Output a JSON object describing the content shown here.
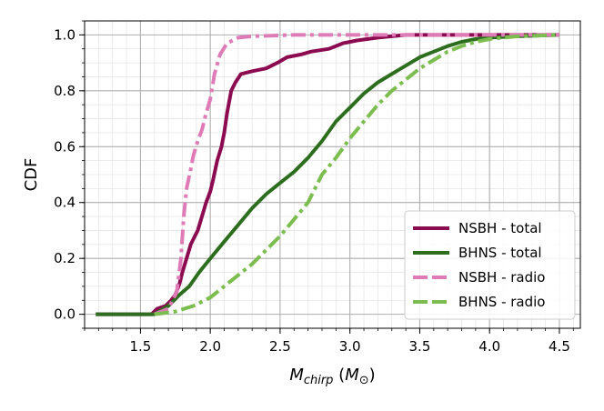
{
  "chart_data": {
    "type": "line",
    "title": "",
    "xlabel": "M_chirp (M_⊙)",
    "ylabel": "CDF",
    "xlim": [
      1.1,
      4.65
    ],
    "ylim": [
      -0.05,
      1.05
    ],
    "xticks": [
      "1.5",
      "2.0",
      "2.5",
      "3.0",
      "3.5",
      "4.0",
      "4.5"
    ],
    "yticks": [
      "0.0",
      "0.2",
      "0.4",
      "0.6",
      "0.8",
      "1.0"
    ],
    "grid": "major and minor",
    "legend_position": "lower-right",
    "series": [
      {
        "name": "NSBH - total",
        "color": "#8b0a50",
        "style": "solid",
        "points": [
          [
            1.18,
            0.0
          ],
          [
            1.58,
            0.0
          ],
          [
            1.62,
            0.02
          ],
          [
            1.68,
            0.03
          ],
          [
            1.72,
            0.05
          ],
          [
            1.75,
            0.07
          ],
          [
            1.78,
            0.11
          ],
          [
            1.8,
            0.15
          ],
          [
            1.83,
            0.2
          ],
          [
            1.86,
            0.25
          ],
          [
            1.88,
            0.27
          ],
          [
            1.91,
            0.3
          ],
          [
            1.94,
            0.35
          ],
          [
            1.97,
            0.4
          ],
          [
            2.0,
            0.44
          ],
          [
            2.02,
            0.48
          ],
          [
            2.05,
            0.55
          ],
          [
            2.08,
            0.6
          ],
          [
            2.1,
            0.65
          ],
          [
            2.12,
            0.72
          ],
          [
            2.15,
            0.8
          ],
          [
            2.18,
            0.83
          ],
          [
            2.22,
            0.86
          ],
          [
            2.3,
            0.87
          ],
          [
            2.4,
            0.88
          ],
          [
            2.48,
            0.9
          ],
          [
            2.55,
            0.92
          ],
          [
            2.65,
            0.93
          ],
          [
            2.72,
            0.94
          ],
          [
            2.85,
            0.95
          ],
          [
            2.95,
            0.97
          ],
          [
            3.05,
            0.98
          ],
          [
            3.2,
            0.99
          ],
          [
            3.4,
            1.0
          ],
          [
            4.5,
            1.0
          ]
        ]
      },
      {
        "name": "BHNS - total",
        "color": "#2c6e1e",
        "style": "solid",
        "points": [
          [
            1.18,
            0.0
          ],
          [
            1.6,
            0.0
          ],
          [
            1.7,
            0.03
          ],
          [
            1.78,
            0.07
          ],
          [
            1.85,
            0.1
          ],
          [
            1.92,
            0.15
          ],
          [
            2.0,
            0.2
          ],
          [
            2.1,
            0.26
          ],
          [
            2.2,
            0.32
          ],
          [
            2.3,
            0.38
          ],
          [
            2.4,
            0.43
          ],
          [
            2.5,
            0.47
          ],
          [
            2.6,
            0.51
          ],
          [
            2.7,
            0.56
          ],
          [
            2.8,
            0.62
          ],
          [
            2.9,
            0.69
          ],
          [
            3.0,
            0.74
          ],
          [
            3.1,
            0.79
          ],
          [
            3.2,
            0.83
          ],
          [
            3.3,
            0.86
          ],
          [
            3.4,
            0.89
          ],
          [
            3.5,
            0.92
          ],
          [
            3.6,
            0.94
          ],
          [
            3.7,
            0.96
          ],
          [
            3.8,
            0.975
          ],
          [
            3.9,
            0.985
          ],
          [
            4.0,
            0.99
          ],
          [
            4.2,
            0.995
          ],
          [
            4.5,
            1.0
          ]
        ]
      },
      {
        "name": "NSBH - radio",
        "color": "#df7bb6",
        "style": "dashdot",
        "points": [
          [
            1.6,
            0.0
          ],
          [
            1.7,
            0.02
          ],
          [
            1.76,
            0.08
          ],
          [
            1.79,
            0.2
          ],
          [
            1.81,
            0.35
          ],
          [
            1.83,
            0.45
          ],
          [
            1.86,
            0.52
          ],
          [
            1.88,
            0.57
          ],
          [
            1.91,
            0.62
          ],
          [
            1.94,
            0.66
          ],
          [
            1.97,
            0.72
          ],
          [
            2.0,
            0.77
          ],
          [
            2.03,
            0.86
          ],
          [
            2.07,
            0.93
          ],
          [
            2.12,
            0.97
          ],
          [
            2.2,
            0.99
          ],
          [
            2.3,
            0.995
          ],
          [
            2.6,
            1.0
          ],
          [
            4.5,
            1.0
          ]
        ]
      },
      {
        "name": "BHNS - radio",
        "color": "#7cbd4f",
        "style": "dashdot",
        "points": [
          [
            1.6,
            0.0
          ],
          [
            1.75,
            0.01
          ],
          [
            1.88,
            0.03
          ],
          [
            2.0,
            0.06
          ],
          [
            2.1,
            0.1
          ],
          [
            2.2,
            0.14
          ],
          [
            2.3,
            0.18
          ],
          [
            2.4,
            0.23
          ],
          [
            2.5,
            0.28
          ],
          [
            2.6,
            0.34
          ],
          [
            2.7,
            0.4
          ],
          [
            2.8,
            0.5
          ],
          [
            2.9,
            0.56
          ],
          [
            3.0,
            0.63
          ],
          [
            3.1,
            0.69
          ],
          [
            3.2,
            0.75
          ],
          [
            3.3,
            0.8
          ],
          [
            3.4,
            0.84
          ],
          [
            3.5,
            0.88
          ],
          [
            3.6,
            0.91
          ],
          [
            3.7,
            0.94
          ],
          [
            3.8,
            0.96
          ],
          [
            3.9,
            0.975
          ],
          [
            4.0,
            0.985
          ],
          [
            4.2,
            0.995
          ],
          [
            4.5,
            1.0
          ]
        ]
      }
    ]
  }
}
